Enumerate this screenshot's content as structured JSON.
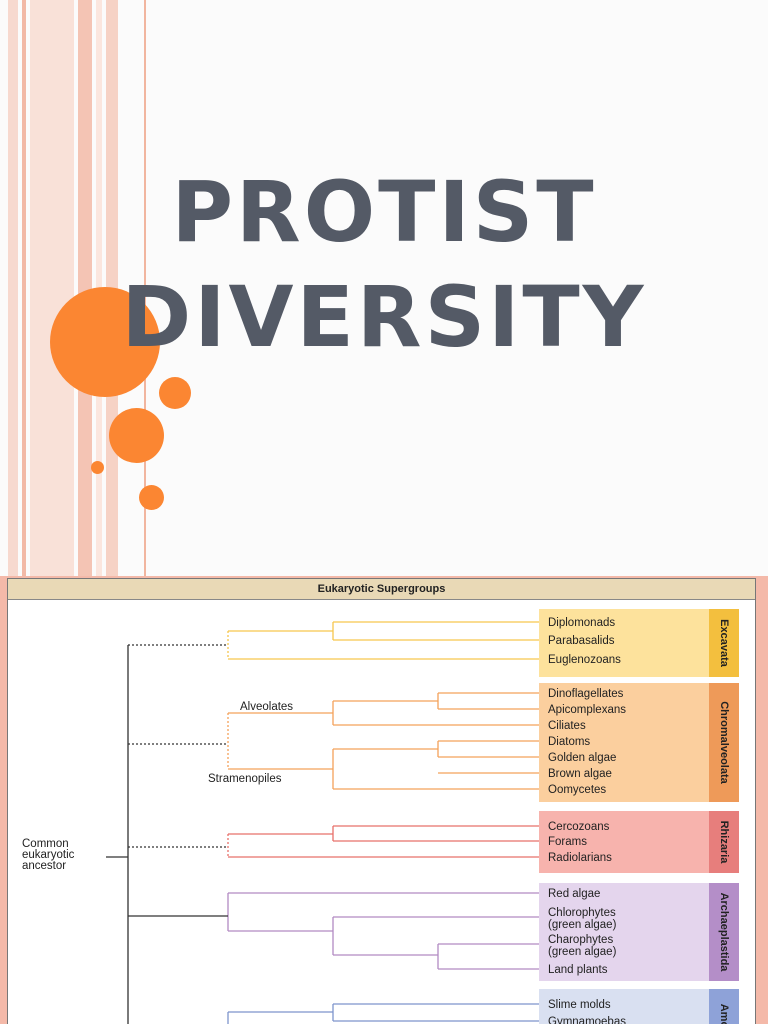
{
  "slide": {
    "title_line1": "PROTIST",
    "title_line2": "DIVERSITY",
    "accent_color": "#fb8632",
    "title_color": "#545a66"
  },
  "figure": {
    "header": "Eukaryotic Supergroups",
    "root_label_lines": [
      "Common",
      "eukaryotic",
      "ancestor"
    ],
    "clade_labels": {
      "alveolates": "Alveolates",
      "stramenopiles": "Stramenopiles"
    },
    "supergroups": [
      {
        "name": "Excavata",
        "color": "#f6c64e",
        "box": "#fde29c",
        "tab": "#f3bf3e",
        "taxa": [
          "Diplomonads",
          "Parabasalids",
          "Euglenozoans"
        ]
      },
      {
        "name": "Chromalveolata",
        "color": "#f3a25a",
        "box": "#fbcf9e",
        "tab": "#ee9a59",
        "taxa": [
          "Dinoflagellates",
          "Apicomplexans",
          "Ciliates",
          "Diatoms",
          "Golden algae",
          "Brown algae",
          "Oomycetes"
        ]
      },
      {
        "name": "Rhizaria",
        "color": "#e8706a",
        "box": "#f7b3ad",
        "tab": "#e77e7c",
        "taxa": [
          "Cercozoans",
          "Forams",
          "Radiolarians"
        ]
      },
      {
        "name": "Archaeplastida",
        "color": "#b28ac2",
        "box": "#e4d5ed",
        "tab": "#b48ec8",
        "taxa": [
          "Red algae",
          "Chlorophytes (green algae)",
          "Charophytes (green algae)",
          "Land plants"
        ],
        "taxa_lines": [
          [
            "Red algae"
          ],
          [
            "Chlorophytes",
            "(green algae)"
          ],
          [
            "Charophytes",
            "(green algae)"
          ],
          [
            "Land plants"
          ]
        ]
      },
      {
        "name": "Amoe",
        "color": "#7e95cc",
        "box": "#d9e0f1",
        "tab": "#8ea2d8",
        "taxa": [
          "Slime molds",
          "Gymnamoebas"
        ]
      }
    ]
  }
}
